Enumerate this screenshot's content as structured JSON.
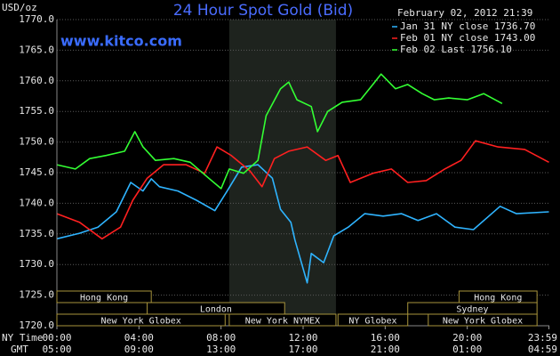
{
  "chart_data": {
    "type": "line",
    "title": "24 Hour Spot Gold (Bid)",
    "unit_label": "USD/oz",
    "timestamp": "February 02, 2012 21:39",
    "website": "www.kitco.com",
    "x_row_labels": [
      "NY Time",
      "GMT"
    ],
    "xlim": [
      0,
      24
    ],
    "xticks": [
      {
        "value": 0,
        "label": "00:00"
      },
      {
        "value": 4,
        "label": "04:00"
      },
      {
        "value": 8,
        "label": "08:00"
      },
      {
        "value": 12,
        "label": "12:00"
      },
      {
        "value": 16,
        "label": "16:00"
      },
      {
        "value": 20,
        "label": "20:00"
      },
      {
        "value": 23.98,
        "label": "23:59"
      }
    ],
    "gmt_tick_labels": [
      "05:00",
      "09:00",
      "13:00",
      "17:00",
      "21:00",
      "01:00",
      "04:59"
    ],
    "ylim": [
      1720,
      1770
    ],
    "yticks": [
      {
        "value": 1720,
        "label": "1720.0"
      },
      {
        "value": 1725,
        "label": "1725.0"
      },
      {
        "value": 1730,
        "label": "1730.0"
      },
      {
        "value": 1735,
        "label": "1735.0"
      },
      {
        "value": 1740,
        "label": "1740.0"
      },
      {
        "value": 1745,
        "label": "1745.0"
      },
      {
        "value": 1750,
        "label": "1750.0"
      },
      {
        "value": 1755,
        "label": "1755.0"
      },
      {
        "value": 1760,
        "label": "1760.0"
      },
      {
        "value": 1765,
        "label": "1765.0"
      },
      {
        "value": 1770,
        "label": "1770.0"
      }
    ],
    "grid": true,
    "shaded_range": [
      8.4,
      13.6
    ],
    "sessions": [
      {
        "label": "Hong Kong",
        "start": 0,
        "end": 4.6,
        "row": 0
      },
      {
        "label": "Hong Kong",
        "start": 19.6,
        "end": 23.4,
        "row": 0
      },
      {
        "label": "London",
        "start": 4.4,
        "end": 11.1,
        "row": 1
      },
      {
        "label": "Sydney",
        "start": 17.1,
        "end": 23.4,
        "row": 1
      },
      {
        "label": "New York Globex",
        "start": 0,
        "end": 8.2,
        "row": 2
      },
      {
        "label": "New York NYMEX",
        "start": 8.4,
        "end": 13.6,
        "row": 2
      },
      {
        "label": "NY Globex",
        "start": 13.7,
        "end": 17.1,
        "row": 2
      },
      {
        "label": "New York Globex",
        "start": 18.1,
        "end": 23.4,
        "row": 2
      }
    ],
    "series": [
      {
        "name": "Jan 31 NY close 1736.70",
        "color": "#2fb4ff",
        "x": [
          0,
          1.1,
          2.0,
          2.9,
          3.6,
          4.2,
          4.6,
          5.0,
          5.9,
          6.8,
          7.7,
          8.3,
          9.0,
          9.8,
          10.5,
          10.9,
          11.4,
          11.6,
          12.2,
          12.4,
          13.0,
          13.5,
          14.2,
          15.0,
          15.9,
          16.8,
          17.6,
          18.5,
          19.4,
          20.3,
          21.6,
          22.4,
          23.98
        ],
        "values": [
          1734.2,
          1735.1,
          1736.1,
          1738.6,
          1743.4,
          1742.0,
          1744.0,
          1742.7,
          1742.0,
          1740.5,
          1738.8,
          1742.0,
          1745.9,
          1746.3,
          1744.1,
          1739.0,
          1736.9,
          1734.0,
          1727.0,
          1731.8,
          1730.3,
          1734.7,
          1736.1,
          1738.3,
          1737.9,
          1738.3,
          1737.2,
          1738.3,
          1736.1,
          1735.7,
          1739.5,
          1738.3,
          1738.6
        ]
      },
      {
        "name": "Feb 01 NY close 1743.00",
        "color": "#ff2020",
        "x": [
          0,
          1.1,
          2.2,
          3.1,
          3.7,
          4.4,
          5.2,
          6.3,
          7.2,
          7.8,
          8.5,
          9.4,
          10.0,
          10.6,
          11.3,
          12.2,
          13.1,
          13.7,
          14.3,
          15.4,
          16.3,
          17.1,
          18.0,
          18.9,
          19.7,
          20.4,
          21.5,
          22.8,
          23.98
        ],
        "values": [
          1738.3,
          1736.9,
          1734.2,
          1736.1,
          1740.5,
          1744.1,
          1746.3,
          1746.3,
          1744.9,
          1749.2,
          1747.8,
          1745.3,
          1742.7,
          1747.3,
          1748.5,
          1749.2,
          1747.0,
          1747.8,
          1743.4,
          1744.9,
          1745.6,
          1743.4,
          1743.7,
          1745.6,
          1747.0,
          1750.2,
          1749.2,
          1748.8,
          1746.7
        ]
      },
      {
        "name": "Feb 02 Last 1756.10",
        "color": "#33ff33",
        "x": [
          0,
          0.9,
          1.6,
          2.4,
          3.3,
          3.8,
          4.2,
          4.8,
          5.7,
          6.5,
          7.4,
          8.0,
          8.4,
          9.1,
          9.8,
          10.2,
          10.9,
          11.3,
          11.7,
          12.4,
          12.7,
          13.2,
          13.9,
          14.8,
          15.4,
          15.8,
          16.5,
          17.1,
          17.8,
          18.4,
          19.1,
          20.0,
          20.8,
          21.7
        ],
        "values": [
          1746.3,
          1745.6,
          1747.3,
          1747.8,
          1748.5,
          1751.7,
          1749.2,
          1747.0,
          1747.3,
          1746.7,
          1744.1,
          1742.4,
          1745.6,
          1744.9,
          1747.0,
          1754.3,
          1758.7,
          1759.8,
          1756.9,
          1755.8,
          1751.7,
          1755.0,
          1756.5,
          1756.9,
          1759.4,
          1761.1,
          1758.7,
          1759.4,
          1757.9,
          1756.9,
          1757.2,
          1756.9,
          1757.9,
          1756.3
        ]
      }
    ]
  }
}
